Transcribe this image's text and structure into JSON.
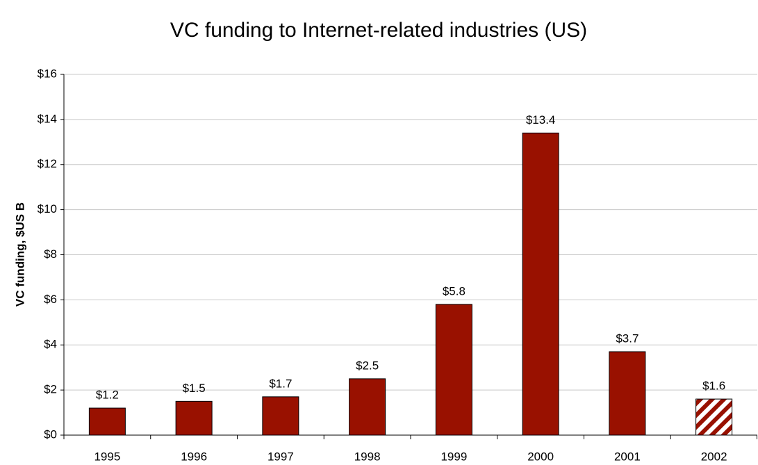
{
  "chart_data": {
    "type": "bar",
    "title": "VC funding to Internet-related industries (US)",
    "y_label": "VC funding, $US B",
    "categories": [
      "1995",
      "1996",
      "1997",
      "1998",
      "1999",
      "2000",
      "2001",
      "2002"
    ],
    "values": [
      1.2,
      1.5,
      1.7,
      2.5,
      5.8,
      13.4,
      3.7,
      1.6
    ],
    "value_labels": [
      "$1.2",
      "$1.5",
      "$1.7",
      "$2.5",
      "$5.8",
      "$13.4",
      "$3.7",
      "$1.6"
    ],
    "hatched": [
      false,
      false,
      false,
      false,
      false,
      false,
      false,
      true
    ],
    "color": "#991100",
    "ylim": [
      0,
      16
    ],
    "yticks": [
      {
        "value": 0,
        "label": "$0"
      },
      {
        "value": 2,
        "label": "$2"
      },
      {
        "value": 4,
        "label": "$4"
      },
      {
        "value": 6,
        "label": "$6"
      },
      {
        "value": 8,
        "label": "$8"
      },
      {
        "value": 10,
        "label": "$10"
      },
      {
        "value": 12,
        "label": "$12"
      },
      {
        "value": 14,
        "label": "$14"
      },
      {
        "value": 16,
        "label": "$16"
      }
    ],
    "grid": true
  }
}
